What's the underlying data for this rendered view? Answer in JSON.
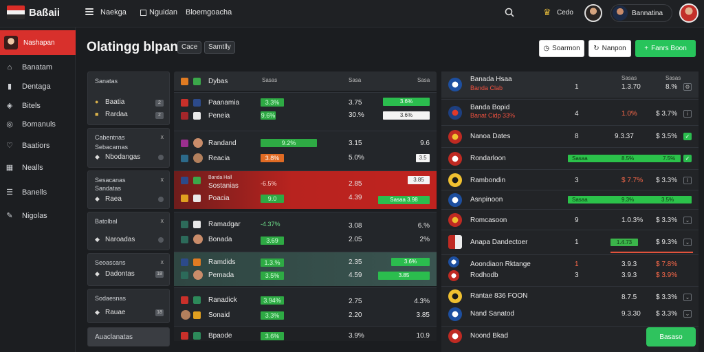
{
  "brand": {
    "name": "Baßaii",
    "flag_colors": [
      "#d92d27",
      "#f2f2f2",
      "#2a2a2a"
    ]
  },
  "topnav": {
    "link1": "Naekga",
    "link2": "Nguidan",
    "link3": "Bloemgoacha",
    "code": "Cedo",
    "user_name": "Bannatina"
  },
  "sidebar": {
    "active": "Nashapan",
    "items": [
      {
        "label": "Banatam",
        "icon": "home-icon"
      },
      {
        "label": "Dentaga",
        "icon": "chart-icon"
      },
      {
        "label": "Bitels",
        "icon": "ticket-icon"
      },
      {
        "label": "Bomanuls",
        "icon": "globe-icon"
      },
      {
        "label": "Baatiors",
        "icon": "shield-icon"
      },
      {
        "label": "Nealls",
        "icon": "calendar-icon"
      },
      {
        "label": "Banells",
        "icon": "list-icon"
      },
      {
        "label": "Nigolas",
        "icon": "pen-icon"
      }
    ]
  },
  "header": {
    "title": "Olatingg blpan",
    "chip1": "Cace",
    "chip2": "Samtlly",
    "btn1": "Soarmon",
    "btn2": "Nanpon",
    "btn3": "Fanrs Boon"
  },
  "categories": [
    {
      "head": "Sanatas",
      "x": "",
      "rows": [
        {
          "label": "Baatia",
          "badge": "2"
        },
        {
          "label": "Rardaa",
          "badge": "2"
        }
      ]
    },
    {
      "head": "Cabentnas",
      "x": "x",
      "sub": "Sebacarnas",
      "rows": [
        {
          "label": "Nbodangas",
          "badge": ""
        }
      ]
    },
    {
      "head": "Sesacanas",
      "x": "x",
      "sub": "Sandatas",
      "rows": [
        {
          "label": "Raea",
          "badge": ""
        }
      ]
    },
    {
      "head": "Batolbal",
      "x": "x",
      "sub": "",
      "rows": [
        {
          "label": "Naroadas",
          "badge": ""
        }
      ]
    },
    {
      "head": "Seoascans",
      "x": "x",
      "sub": "",
      "rows": [
        {
          "label": "Dadontas",
          "badge": "18"
        }
      ]
    },
    {
      "head": "Sodaesnas",
      "x": "",
      "sub": "",
      "rows": [
        {
          "label": "Rauae",
          "badge": "18"
        }
      ]
    },
    {
      "head": "Auaclanatas",
      "x": "",
      "sub": "",
      "rows": []
    }
  ],
  "matches": {
    "head": {
      "title": "Dybas",
      "c1": "Sasas",
      "c2": "Sasa",
      "c3": "Sasa"
    },
    "rows": [
      {
        "team1": "Paanamia",
        "team2": "Peneia",
        "pct1": "3.3%",
        "pct2": "9.6%",
        "val1": "3.75",
        "val2": "30.%",
        "pill1": "3.6%",
        "pill2": "3.6%",
        "style": ""
      },
      {
        "team1": "Randand",
        "team2": "Reacia",
        "pct1": "9.2%",
        "pct2": "3.8%",
        "val1": "3.15",
        "val2": "5.0%",
        "pill1": "9.6",
        "pill2": "3.5",
        "style": ""
      },
      {
        "team1": "Banda Hall",
        "team2": "Sostanias",
        "team3": "Poacia",
        "pct1": "-6.5%",
        "pct2": "9.0",
        "val1": "2.85",
        "val2": "4.39",
        "pill1": "3.85",
        "pill2": "Sasaa 3.98",
        "style": "red"
      },
      {
        "team1": "Ramadgar",
        "team2": "Bonada",
        "pct1": "-4.37%",
        "pct2": "3.69",
        "val1": "3.08",
        "val2": "2.05",
        "pill1": "6.%",
        "pill2": "2%",
        "style": ""
      },
      {
        "team1": "Ramdids",
        "team2": "Pemada",
        "pct1": "1.3.%",
        "pct2": "3.5%",
        "val1": "2.35",
        "val2": "4.59",
        "pill1": "3.6%",
        "pill2": "3.85",
        "style": "teal"
      },
      {
        "team1": "Ranadick",
        "team2": "Sonaid",
        "pct1": "3.94%",
        "pct2": "3.3%",
        "val1": "2.75",
        "val2": "2.20",
        "pill1": "4.3%",
        "pill2": "3.85",
        "style": ""
      },
      {
        "team1": "Bpaode",
        "team2": "",
        "pct1": "3.6%",
        "pct2": "",
        "val1": "3.9%",
        "val2": "",
        "pill1": "10.9",
        "pill2": "",
        "style": ""
      }
    ]
  },
  "odds": {
    "head": {
      "team": "Banada Hsaa",
      "sub": "Banda Clab",
      "c1": "1",
      "c2": "Sasas",
      "c3": "Sasas",
      "v1": "1.3.70",
      "v2": "8.%"
    },
    "rows": [
      {
        "team": "Banda Bopid",
        "sub": "Banat Cidp 33%",
        "num": "4",
        "odds": "1.0%",
        "pct": "$ 3.7%",
        "odds_red": true,
        "pct_red": false,
        "chk": ""
      },
      {
        "team": "Nanoa Dates",
        "sub": "",
        "num": "8",
        "odds": "9.3.37",
        "pct": "$ 3.5%",
        "odds_red": false,
        "pct_red": false,
        "chk": "✓"
      },
      {
        "team": "Rondarloon",
        "sub": "",
        "num": "",
        "odds": "8.5%",
        "pct": "7.5%",
        "odds_red": false,
        "pct_red": false,
        "chk": "✓",
        "bar": "Sasaa"
      },
      {
        "team": "Rambondin",
        "sub": "",
        "num": "3",
        "odds": "$ 7.7%",
        "pct": "$ 3.3%",
        "odds_red": true,
        "pct_red": false,
        "chk": ""
      },
      {
        "team": "Asnpinoon",
        "sub": "",
        "num": "",
        "odds": "9.3%",
        "pct": "3.5%",
        "odds_red": false,
        "pct_red": false,
        "chk": "",
        "bar": "Sasaa"
      },
      {
        "team": "Romcasoon",
        "sub": "",
        "num": "9",
        "odds": "1.0.3%",
        "pct": "$ 3.3%",
        "odds_red": false,
        "pct_red": false,
        "chk": ""
      },
      {
        "team": "Anapa Dandectoer",
        "sub": "",
        "num": "1",
        "odds": "1.4.73",
        "pct": "$ 9.3%",
        "odds_red": false,
        "pct_red": false,
        "chk": ""
      },
      {
        "team": "Aoondiaon Rktange",
        "sub": "Rodhodb",
        "num": "1",
        "odds": "3.9.3",
        "pct": "$ 7.8%",
        "odds_red": false,
        "pct_red": true,
        "chk": ""
      },
      {
        "team": "Rodhodb",
        "sub": "",
        "num": "3",
        "odds": "3.9.3",
        "pct": "$ 3.9%",
        "odds_red": false,
        "pct_red": true,
        "chk": ""
      },
      {
        "team": "Rantae 836 FOON",
        "sub": "",
        "num": "",
        "odds": "8.7.5",
        "pct": "$ 3.3%",
        "odds_red": false,
        "pct_red": false,
        "chk": ""
      },
      {
        "team": "Nand Sanatod",
        "sub": "",
        "num": "",
        "odds": "9.3.30",
        "pct": "$ 3.3%",
        "odds_red": false,
        "pct_red": false,
        "chk": ""
      },
      {
        "team": "Noond Bkad",
        "sub": "",
        "num": "",
        "odds": "",
        "pct": "",
        "odds_red": false,
        "pct_red": false,
        "chk": ""
      }
    ]
  },
  "float_button": "Basaso"
}
